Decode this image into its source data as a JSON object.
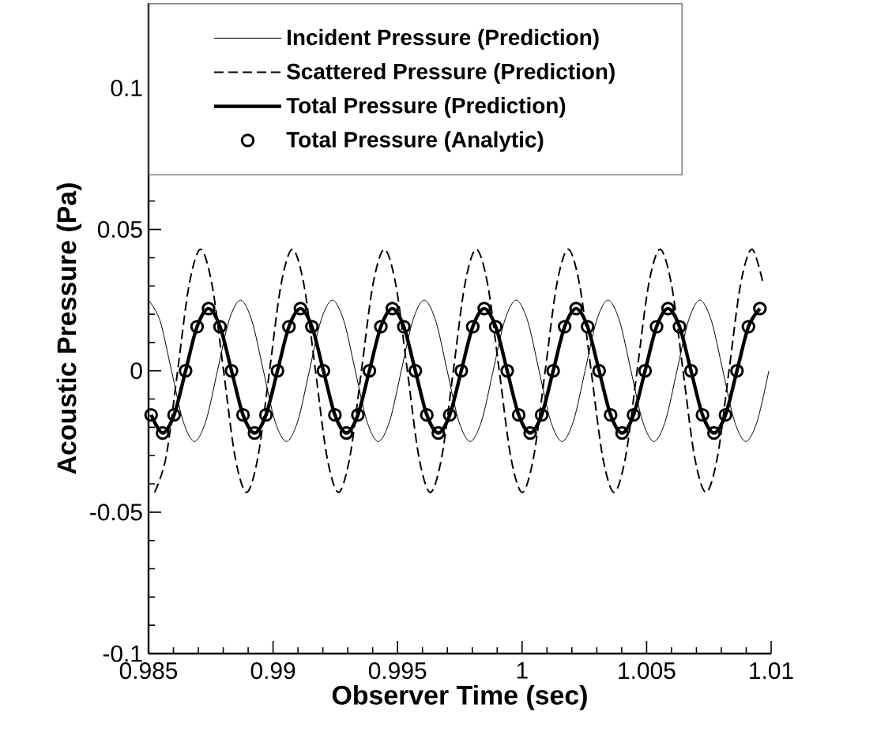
{
  "chart_data": {
    "type": "line",
    "xlabel": "Observer Time (sec)",
    "ylabel": "Acoustic Pressure (Pa)",
    "xlim": [
      0.985,
      1.01
    ],
    "xticks": [
      0.985,
      0.99,
      0.995,
      1,
      1.005,
      1.01
    ],
    "ylim": [
      -0.1,
      0.13
    ],
    "yticks": [
      -0.1,
      -0.05,
      0,
      0.05,
      0.1
    ],
    "legend": "top",
    "x": [
      0.985104,
      0.985565,
      0.986026,
      0.986488,
      0.986949,
      0.98741,
      0.987871,
      0.988333,
      0.988794,
      0.989255,
      0.989716,
      0.990178,
      0.990639,
      0.9911,
      0.991561,
      0.992023,
      0.992484,
      0.992945,
      0.993406,
      0.993868,
      0.994329,
      0.99479,
      0.995251,
      0.995713,
      0.996174,
      0.996635,
      0.997096,
      0.997558,
      0.998019,
      0.99848,
      0.998941,
      0.999403,
      0.999864,
      1.000325,
      1.000786,
      1.001248,
      1.001709,
      1.00217,
      1.002631,
      1.003093,
      1.003554,
      1.004015,
      1.004476,
      1.004938,
      1.005399,
      1.00586,
      1.006321,
      1.006783,
      1.007244,
      1.007705,
      1.008166,
      1.008628,
      1.009089,
      1.00955
    ],
    "series": [
      {
        "name": "Incident Pressure (Prediction)",
        "color": "#000000",
        "line_style": "solid",
        "marker": "none",
        "x": [
          0.985,
          0.985461,
          0.985923,
          0.986384,
          0.986845,
          0.987306,
          0.987768,
          0.988229,
          0.98869,
          0.989151,
          0.989613,
          0.990074,
          0.990535,
          0.990996,
          0.991458,
          0.991919,
          0.99238,
          0.992841,
          0.993303,
          0.993764,
          0.994225,
          0.994686,
          0.995148,
          0.995609,
          0.99607,
          0.996531,
          0.996993,
          0.997454,
          0.997915,
          0.998376,
          0.998838,
          0.999299,
          0.99976,
          1.000221,
          1.000683,
          1.001144,
          1.001605,
          1.002066,
          1.002528,
          1.002989,
          1.00345,
          1.003911,
          1.004373,
          1.004834,
          1.005295,
          1.005756,
          1.006218,
          1.006679,
          1.00714,
          1.007601,
          1.008063,
          1.008524,
          1.008985,
          1.009446,
          1.009908
        ],
        "values": [
          0.025,
          0.0177,
          0,
          -0.0177,
          -0.025,
          -0.0177,
          0,
          0.0177,
          0.025,
          0.0177,
          0,
          -0.0177,
          -0.025,
          -0.0177,
          0,
          0.0177,
          0.025,
          0.0177,
          0,
          -0.0177,
          -0.025,
          -0.0177,
          0,
          0.0177,
          0.025,
          0.0177,
          0,
          -0.0177,
          -0.025,
          -0.0177,
          0,
          0.0177,
          0.025,
          0.0177,
          0,
          -0.0177,
          -0.025,
          -0.0177,
          0,
          0.0177,
          0.025,
          0.0177,
          0,
          -0.0177,
          -0.025,
          -0.0177,
          0,
          0.0177,
          0.025,
          0.0177,
          0,
          -0.0177,
          -0.025,
          -0.0177,
          0
        ]
      },
      {
        "name": "Scattered Pressure (Prediction)",
        "color": "#000000",
        "line_style": "dashed",
        "marker": "none",
        "x": [
          0.985245,
          0.985706,
          0.986168,
          0.986629,
          0.98709,
          0.987551,
          0.988013,
          0.988474,
          0.988935,
          0.989396,
          0.989858,
          0.990319,
          0.99078,
          0.991241,
          0.991703,
          0.992164,
          0.992625,
          0.993086,
          0.993548,
          0.994009,
          0.99447,
          0.994931,
          0.995393,
          0.995854,
          0.996315,
          0.996776,
          0.997238,
          0.997699,
          0.99816,
          0.998621,
          0.999083,
          0.999544,
          1.000005,
          1.000466,
          1.000928,
          1.001389,
          1.00185,
          1.002311,
          1.002773,
          1.003234,
          1.003695,
          1.004156,
          1.004618,
          1.005079,
          1.00554,
          1.006001,
          1.006463,
          1.006924,
          1.007385,
          1.007846,
          1.008308,
          1.008769,
          1.00923,
          1.009691
        ],
        "values": [
          -0.043,
          -0.0304,
          0,
          0.0304,
          0.043,
          0.0304,
          0,
          -0.0304,
          -0.043,
          -0.0304,
          0,
          0.0304,
          0.043,
          0.0304,
          0,
          -0.0304,
          -0.043,
          -0.0304,
          0,
          0.0304,
          0.043,
          0.0304,
          0,
          -0.0304,
          -0.043,
          -0.0304,
          0,
          0.0304,
          0.043,
          0.0304,
          0,
          -0.0304,
          -0.043,
          -0.0304,
          0,
          0.0304,
          0.043,
          0.0304,
          0,
          -0.0304,
          -0.043,
          -0.0304,
          0,
          0.0304,
          0.043,
          0.0304,
          0,
          -0.0304,
          -0.043,
          -0.0304,
          0,
          0.0304,
          0.043,
          0.0304
        ]
      },
      {
        "name": "Total Pressure (Prediction)",
        "color": "#000000",
        "line_style": "solid",
        "marker": "none",
        "values": [
          -0.0156,
          -0.022,
          -0.0156,
          0,
          0.0156,
          0.022,
          0.0156,
          0,
          -0.0156,
          -0.022,
          -0.0156,
          0,
          0.0156,
          0.022,
          0.0156,
          0,
          -0.0156,
          -0.022,
          -0.0156,
          0,
          0.0156,
          0.022,
          0.0156,
          0,
          -0.0156,
          -0.022,
          -0.0156,
          0,
          0.0156,
          0.022,
          0.0156,
          0,
          -0.0156,
          -0.022,
          -0.0156,
          0,
          0.0156,
          0.022,
          0.0156,
          0,
          -0.0156,
          -0.022,
          -0.0156,
          0,
          0.0156,
          0.022,
          0.0156,
          0,
          -0.0156,
          -0.022,
          -0.0156,
          0,
          0.0156,
          0.022
        ]
      },
      {
        "name": "Total Pressure (Analytic)",
        "color": "#000000",
        "type": "scatter",
        "marker": "circle",
        "values": [
          -0.0156,
          -0.022,
          -0.0156,
          0,
          0.0156,
          0.022,
          0.0156,
          0,
          -0.0156,
          -0.022,
          -0.0156,
          0,
          0.0156,
          0.022,
          0.0156,
          0,
          -0.0156,
          -0.022,
          -0.0156,
          0,
          0.0156,
          0.022,
          0.0156,
          0,
          -0.0156,
          -0.022,
          -0.0156,
          0,
          0.0156,
          0.022,
          0.0156,
          0,
          -0.0156,
          -0.022,
          -0.0156,
          0,
          0.0156,
          0.022,
          0.0156,
          0,
          -0.0156,
          -0.022,
          -0.0156,
          0,
          0.0156,
          0.022,
          0.0156,
          0,
          -0.0156,
          -0.022,
          -0.0156,
          0,
          0.0156,
          0.022
        ]
      }
    ]
  }
}
